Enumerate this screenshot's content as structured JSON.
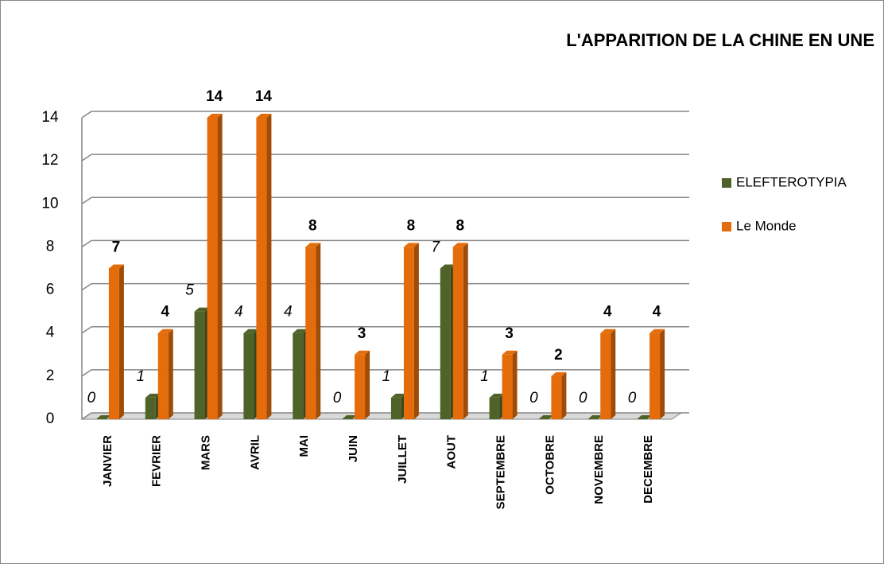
{
  "chart_data": {
    "type": "bar3d",
    "title": "L'APPARITION DE LA CHINE EN UNE",
    "categories": [
      "JANVIER",
      "FEVRIER",
      "MARS",
      "AVRIL",
      "MAI",
      "JUIN",
      "JUILLET",
      "AOUT",
      "SEPTEMBRE",
      "OCTOBRE",
      "NOVEMBRE",
      "DECEMBRE"
    ],
    "series": [
      {
        "name": "ELEFTEROTYPIA",
        "color": "#4f6228",
        "values": [
          0,
          1,
          5,
          4,
          4,
          0,
          1,
          7,
          1,
          0,
          0,
          0
        ]
      },
      {
        "name": "Le Monde",
        "color": "#e46c0a",
        "values": [
          7,
          4,
          14,
          14,
          8,
          3,
          8,
          8,
          3,
          2,
          4,
          4
        ]
      }
    ],
    "ylim": [
      0,
      14
    ],
    "yticks": [
      0,
      2,
      4,
      6,
      8,
      10,
      12,
      14
    ],
    "grid": true,
    "legend": "right"
  }
}
